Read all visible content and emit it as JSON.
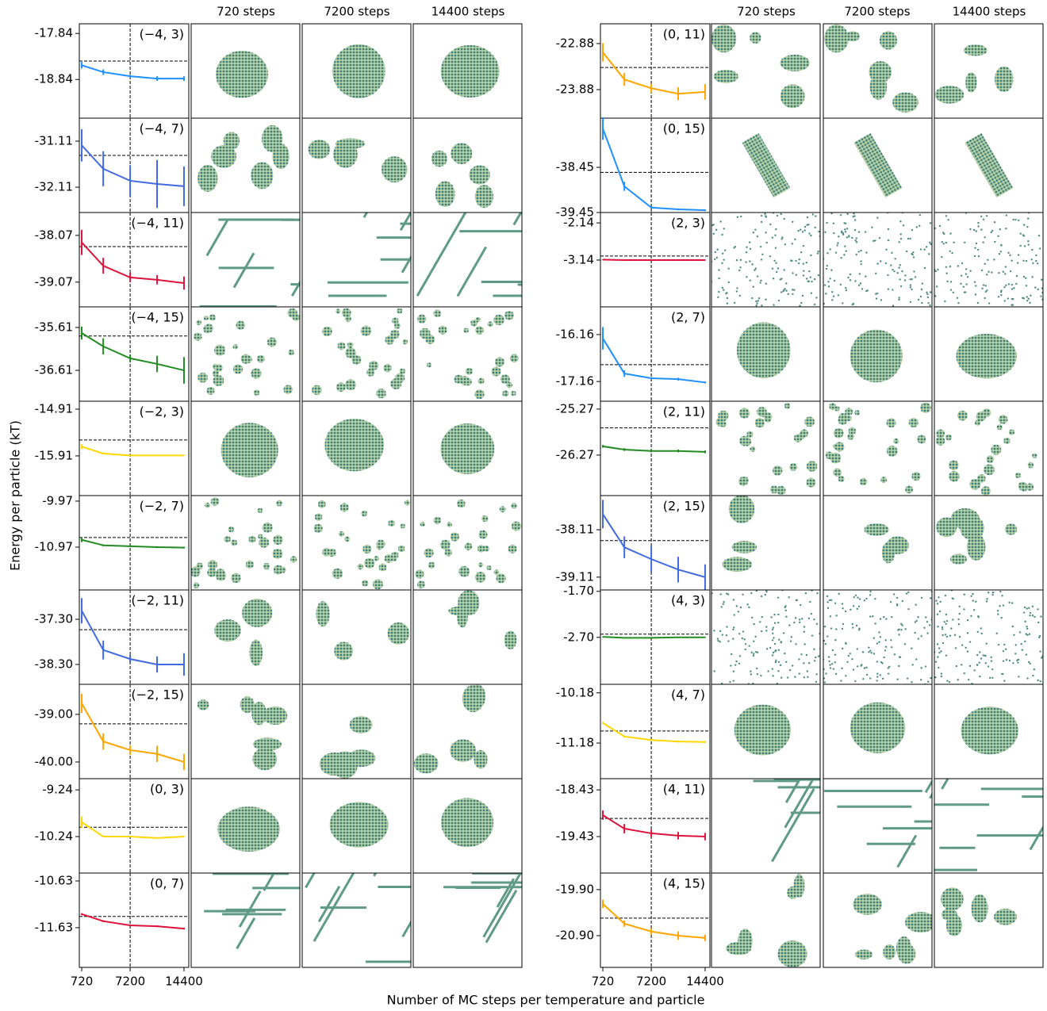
{
  "figure": {
    "ylabel": "Energy per particle (kT)",
    "xlabel": "Number of MC steps per temperature and particle",
    "column_headers": [
      [
        "720 steps",
        "7200 steps",
        "14400 steps"
      ],
      [
        "720 steps",
        "7200 steps",
        "14400 steps"
      ]
    ]
  },
  "chart_data": [
    {
      "type": "line",
      "label": "(−4, 3)",
      "color": "#1e90ff",
      "x": [
        720,
        3600,
        7200,
        10800,
        14400
      ],
      "values": [
        -18.53,
        -18.68,
        -18.77,
        -18.82,
        -18.82
      ],
      "errors": [
        0.07,
        0.06,
        0.03,
        0.05,
        0.05
      ],
      "hline": -18.44,
      "vline": 7200,
      "xlim": [
        400,
        15040
      ],
      "ylim": [
        -19.68,
        -17.63
      ],
      "yticks": [
        -17.84,
        -18.84
      ]
    },
    {
      "type": "line",
      "label": "(−4, 7)",
      "color": "#4169e1",
      "x": [
        720,
        3600,
        7200,
        10800,
        14400
      ],
      "values": [
        -31.2,
        -31.71,
        -31.97,
        -32.04,
        -32.09
      ],
      "errors": [
        0.35,
        0.38,
        0.34,
        0.52,
        0.43
      ],
      "hline": -31.42,
      "vline": 7200,
      "xlim": [
        400,
        15040
      ],
      "ylim": [
        -32.66,
        -30.61
      ],
      "yticks": [
        -31.11,
        -32.11
      ]
    },
    {
      "type": "line",
      "label": "(−4, 11)",
      "color": "#dc143c",
      "x": [
        720,
        3600,
        7200,
        10800,
        14400
      ],
      "values": [
        -38.22,
        -38.72,
        -38.97,
        -39.02,
        -39.09
      ],
      "errors": [
        0.27,
        0.17,
        0.1,
        0.1,
        0.14
      ],
      "hline": -38.31,
      "vline": 7200,
      "xlim": [
        400,
        15040
      ],
      "ylim": [
        -39.6,
        -37.58
      ],
      "yticks": [
        -38.07,
        -39.07
      ]
    },
    {
      "type": "line",
      "label": "(−4, 15)",
      "color": "#228b22",
      "x": [
        720,
        3600,
        7200,
        10800,
        14400
      ],
      "values": [
        -35.74,
        -36.05,
        -36.33,
        -36.46,
        -36.61
      ],
      "errors": [
        0.15,
        0.19,
        0.09,
        0.19,
        0.31
      ],
      "hline": -35.81,
      "vline": 7200,
      "xlim": [
        400,
        15040
      ],
      "ylim": [
        -37.33,
        -35.13
      ],
      "yticks": [
        -35.61,
        -36.61
      ]
    },
    {
      "type": "line",
      "label": "(−2, 3)",
      "color": "#ffd700",
      "x": [
        720,
        3600,
        7200,
        10800,
        14400
      ],
      "values": [
        -15.71,
        -15.86,
        -15.9,
        -15.9,
        -15.9
      ],
      "errors": [
        0.05,
        0.02,
        0.01,
        0.01,
        0.01
      ],
      "hline": -15.57,
      "vline": 7200,
      "xlim": [
        400,
        15040
      ],
      "ylim": [
        -16.76,
        -14.74
      ],
      "yticks": [
        -14.91,
        -15.91
      ]
    },
    {
      "type": "line",
      "label": "(−2, 7)",
      "color": "#228b22",
      "x": [
        720,
        3600,
        7200,
        10800,
        14400
      ],
      "values": [
        -10.81,
        -10.93,
        -10.95,
        -10.97,
        -10.98
      ],
      "errors": [
        0.05,
        0.02,
        0.02,
        0.02,
        0.02
      ],
      "hline": -10.76,
      "vline": 7200,
      "xlim": [
        400,
        15040
      ],
      "ylim": [
        -11.9,
        -9.85
      ],
      "yticks": [
        -9.97,
        -10.97
      ]
    },
    {
      "type": "line",
      "label": "(−2, 11)",
      "color": "#4169e1",
      "x": [
        720,
        3600,
        7200,
        10800,
        14400
      ],
      "values": [
        -37.11,
        -37.98,
        -38.18,
        -38.3,
        -38.3
      ],
      "errors": [
        0.28,
        0.21,
        0.09,
        0.18,
        0.25
      ],
      "hline": -37.53,
      "vline": 7200,
      "xlim": [
        400,
        15040
      ],
      "ylim": [
        -38.74,
        -36.65
      ],
      "yticks": [
        {
          "value": -37.3,
          "label": "-37.30"
        },
        {
          "value": -38.3,
          "label": "-38.30"
        }
      ]
    },
    {
      "type": "line",
      "label": "(−2, 15)",
      "color": "#ffa500",
      "x": [
        720,
        3600,
        7200,
        10800,
        14400
      ],
      "values": [
        -38.77,
        -39.57,
        -39.75,
        -39.83,
        -40.0
      ],
      "errors": [
        0.2,
        0.17,
        0.1,
        0.17,
        0.17
      ],
      "hline": -39.2,
      "vline": 7200,
      "xlim": [
        400,
        15040
      ],
      "ylim": [
        -40.35,
        -38.37
      ],
      "yticks": [
        {
          "value": -39,
          "label": "-39.00"
        },
        {
          "value": -40,
          "label": "-40.00"
        }
      ]
    },
    {
      "type": "line",
      "label": "(0, 3)",
      "color": "#ffd700",
      "x": [
        720,
        3600,
        7200,
        10800,
        14400
      ],
      "values": [
        -9.93,
        -10.24,
        -10.24,
        -10.27,
        -10.24
      ],
      "errors": [
        0.12,
        0.01,
        0.01,
        0.01,
        0.01
      ],
      "hline": -10.04,
      "vline": 7200,
      "xlim": [
        400,
        15040
      ],
      "ylim": [
        -11.02,
        -9.0
      ],
      "yticks": [
        -9.24,
        -10.24
      ]
    },
    {
      "type": "line",
      "label": "(0, 7)",
      "color": "#dc143c",
      "x": [
        720,
        3600,
        7200,
        10800,
        14400
      ],
      "values": [
        -11.34,
        -11.49,
        -11.58,
        -11.6,
        -11.65
      ],
      "errors": [
        0.02,
        0.02,
        0.02,
        0.02,
        0.02
      ],
      "hline": -11.39,
      "vline": 7200,
      "xlim": [
        400,
        15040
      ],
      "ylim": [
        -12.48,
        -10.46
      ],
      "yticks": [
        -10.63,
        -11.63
      ],
      "xticks": [
        720,
        7200,
        14400
      ]
    },
    {
      "type": "line",
      "label": "(0, 11)",
      "color": "#ffa500",
      "x": [
        720,
        3600,
        7200,
        10800,
        14400
      ],
      "values": [
        -23.07,
        -23.66,
        -23.85,
        -23.97,
        -23.93
      ],
      "errors": [
        0.2,
        0.14,
        0.1,
        0.14,
        0.17
      ],
      "hline": -23.4,
      "vline": 7200,
      "xlim": [
        400,
        15040
      ],
      "ylim": [
        -24.5,
        -22.45
      ],
      "yticks": [
        -22.88,
        -23.88
      ]
    },
    {
      "type": "line",
      "label": "(0, 15)",
      "color": "#1e90ff",
      "x": [
        720,
        3600,
        7200,
        10800,
        14400
      ],
      "values": [
        -37.59,
        -38.87,
        -39.34,
        -39.38,
        -39.4
      ],
      "errors": [
        0.25,
        0.1,
        0.02,
        0.02,
        0.02
      ],
      "hline": -38.56,
      "vline": 7200,
      "xlim": [
        400,
        15040
      ],
      "ylim": [
        -39.45,
        -37.36
      ],
      "yticks": [
        -38.45,
        -39.45
      ]
    },
    {
      "type": "line",
      "label": "(2, 3)",
      "color": "#dc143c",
      "x": [
        720,
        3600,
        7200,
        10800,
        14400
      ],
      "values": [
        -3.13,
        -3.14,
        -3.14,
        -3.14,
        -3.14
      ],
      "errors": [
        0.01,
        0.01,
        0.01,
        0.01,
        0.01
      ],
      "hline": -3.03,
      "vline": 7200,
      "xlim": [
        400,
        15040
      ],
      "ylim": [
        -4.4,
        -1.86
      ],
      "yticks": [
        -2.14,
        -3.14
      ]
    },
    {
      "type": "line",
      "label": "(2, 7)",
      "color": "#1e90ff",
      "x": [
        720,
        3600,
        7200,
        10800,
        14400
      ],
      "values": [
        -16.24,
        -16.99,
        -17.09,
        -17.11,
        -17.18
      ],
      "errors": [
        0.24,
        0.07,
        0.02,
        0.03,
        0.02
      ],
      "hline": -16.8,
      "vline": 7200,
      "xlim": [
        400,
        15040
      ],
      "ylim": [
        -17.58,
        -15.57
      ],
      "yticks": [
        -16.16,
        -17.16
      ]
    },
    {
      "type": "line",
      "label": "(2, 11)",
      "color": "#228b22",
      "x": [
        720,
        3600,
        7200,
        10800,
        14400
      ],
      "values": [
        -26.08,
        -26.15,
        -26.18,
        -26.18,
        -26.2
      ],
      "errors": [
        0.03,
        0.03,
        0.03,
        0.03,
        0.03
      ],
      "hline": -25.68,
      "vline": 7200,
      "xlim": [
        400,
        15040
      ],
      "ylim": [
        -27.15,
        -25.1
      ],
      "yticks": [
        -25.27,
        -26.27
      ]
    },
    {
      "type": "line",
      "label": "(2, 15)",
      "color": "#4169e1",
      "x": [
        720,
        3600,
        7200,
        10800,
        14400
      ],
      "values": [
        -37.78,
        -38.48,
        -38.73,
        -38.95,
        -39.11
      ],
      "errors": [
        0.3,
        0.23,
        0.27,
        0.27,
        0.27
      ],
      "hline": -38.34,
      "vline": 7200,
      "xlim": [
        400,
        15040
      ],
      "ylim": [
        -39.38,
        -37.39
      ],
      "yticks": [
        -38.11,
        -39.11
      ]
    },
    {
      "type": "line",
      "label": "(4, 3)",
      "color": "#228b22",
      "x": [
        720,
        3600,
        7200,
        10800,
        14400
      ],
      "values": [
        -2.69,
        -2.71,
        -2.71,
        -2.7,
        -2.7
      ],
      "errors": [
        0.01,
        0.01,
        0.01,
        0.01,
        0.01
      ],
      "hline": -2.63,
      "vline": 7200,
      "xlim": [
        400,
        15040
      ],
      "ylim": [
        -3.72,
        -1.67
      ],
      "yticks": [
        {
          "value": -1.7,
          "label": "-1.70"
        },
        {
          "value": -2.7,
          "label": "-2.70"
        }
      ]
    },
    {
      "type": "line",
      "label": "(4, 7)",
      "color": "#ffd700",
      "x": [
        720,
        3600,
        7200,
        10800,
        14400
      ],
      "values": [
        -10.78,
        -11.05,
        -11.12,
        -11.15,
        -11.16
      ],
      "errors": [
        0.02,
        0.02,
        0.02,
        0.02,
        0.02
      ],
      "hline": -10.94,
      "vline": 7200,
      "xlim": [
        400,
        15040
      ],
      "ylim": [
        -11.89,
        -10.01
      ],
      "yticks": [
        -10.18,
        -11.18
      ]
    },
    {
      "type": "line",
      "label": "(4, 11)",
      "color": "#dc143c",
      "x": [
        720,
        3600,
        7200,
        10800,
        14400
      ],
      "values": [
        -18.97,
        -19.26,
        -19.36,
        -19.41,
        -19.43
      ],
      "errors": [
        0.1,
        0.1,
        0.08,
        0.08,
        0.08
      ],
      "hline": -19.04,
      "vline": 7200,
      "xlim": [
        400,
        15040
      ],
      "ylim": [
        -20.21,
        -18.19
      ],
      "yticks": [
        -18.43,
        -19.43
      ]
    },
    {
      "type": "line",
      "label": "(4, 15)",
      "color": "#ffa500",
      "x": [
        720,
        3600,
        7200,
        10800,
        14400
      ],
      "values": [
        -20.21,
        -20.64,
        -20.81,
        -20.9,
        -20.95
      ],
      "errors": [
        0.09,
        0.07,
        0.07,
        0.09,
        0.07
      ],
      "hline": -20.52,
      "vline": 7200,
      "xlim": [
        400,
        15040
      ],
      "ylim": [
        -21.59,
        -19.54
      ],
      "yticks": [
        {
          "value": -19.9,
          "label": "-19.90"
        },
        {
          "value": -20.9,
          "label": "-20.90"
        }
      ],
      "xticks": [
        720,
        7200,
        14400
      ]
    }
  ]
}
